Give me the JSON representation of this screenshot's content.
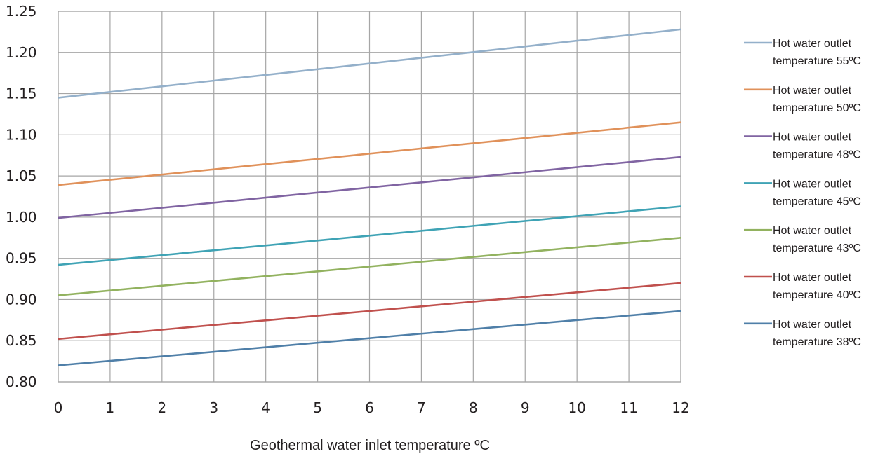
{
  "chart_data": {
    "type": "line",
    "title": "",
    "xlabel": "Geothermal water inlet temperature ºC",
    "ylabel": "",
    "x": [
      0,
      1,
      2,
      3,
      4,
      5,
      6,
      7,
      8,
      9,
      10,
      11,
      12
    ],
    "xlim": [
      0,
      12
    ],
    "ylim": [
      0.8,
      1.25
    ],
    "x_ticks": [
      "0",
      "1",
      "2",
      "3",
      "4",
      "5",
      "6",
      "7",
      "8",
      "9",
      "10",
      "11",
      "12"
    ],
    "y_ticks": [
      "0.80",
      "0.85",
      "0.90",
      "0.95",
      "1.00",
      "1.05",
      "1.10",
      "1.15",
      "1.20",
      "1.25"
    ],
    "grid": true,
    "legend_position": "right",
    "series": [
      {
        "name_line1": "Hot water outlet",
        "name_line2": "temperature 55ºC",
        "color": "#94b0ca",
        "y_start": 1.145,
        "y_end": 1.228
      },
      {
        "name_line1": "Hot water outlet",
        "name_line2": "temperature 50ºC",
        "color": "#e0915a",
        "y_start": 1.039,
        "y_end": 1.115
      },
      {
        "name_line1": "Hot water outlet",
        "name_line2": "temperature 48ºC",
        "color": "#8064a2",
        "y_start": 0.999,
        "y_end": 1.073
      },
      {
        "name_line1": "Hot water outlet",
        "name_line2": "temperature 45ºC",
        "color": "#3fa3b5",
        "y_start": 0.942,
        "y_end": 1.013
      },
      {
        "name_line1": "Hot water outlet",
        "name_line2": "temperature 43ºC",
        "color": "#92b25f",
        "y_start": 0.905,
        "y_end": 0.975
      },
      {
        "name_line1": "Hot water outlet",
        "name_line2": "temperature 40ºC",
        "color": "#c0504d",
        "y_start": 0.852,
        "y_end": 0.92
      },
      {
        "name_line1": "Hot water outlet",
        "name_line2": "temperature 38ºC",
        "color": "#4f7fa8",
        "y_start": 0.82,
        "y_end": 0.886
      }
    ]
  }
}
